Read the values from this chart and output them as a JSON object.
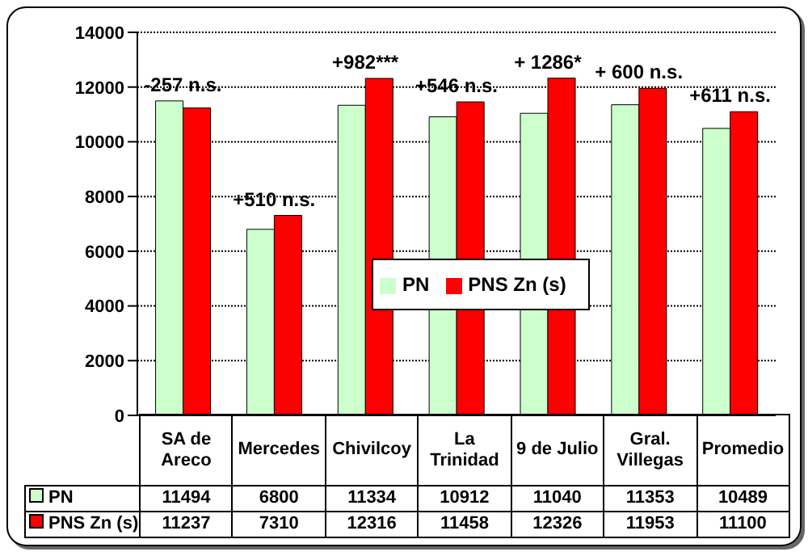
{
  "chart_data": {
    "type": "bar",
    "categories": [
      "SA de Areco",
      "Mercedes",
      "Chivilcoy",
      "La Trinidad",
      "9 de Julio",
      "Gral. Villegas",
      "Promedio"
    ],
    "series": [
      {
        "name": "PN",
        "color": "#ccffcc",
        "values": [
          11494,
          6800,
          11334,
          10912,
          11040,
          11353,
          10489
        ]
      },
      {
        "name": "PNS Zn (s)",
        "color": "#ff0000",
        "values": [
          11237,
          7310,
          12316,
          11458,
          12326,
          11953,
          11100
        ]
      }
    ],
    "ylim": [
      0,
      14000
    ],
    "yticks": [
      0,
      2000,
      4000,
      6000,
      8000,
      10000,
      12000,
      14000
    ],
    "grid": "y",
    "legend": "center",
    "data_labels": true,
    "annotations": [
      {
        "text": "-257 n.s.",
        "x": "SA de Areco",
        "y": 11494
      },
      {
        "text": "+510 n.s.",
        "x": "Mercedes",
        "y": 7310
      },
      {
        "text": "+982***",
        "x": "Chivilcoy",
        "y": 12316
      },
      {
        "text": "+546 n.s.",
        "x": "La Trinidad",
        "y": 11458
      },
      {
        "text": "+ 1286*",
        "x": "9 de Julio",
        "y": 12326
      },
      {
        "text": "+ 600 n.s.",
        "x": "Gral. Villegas",
        "y": 11953
      },
      {
        "text": "+611 n.s.",
        "x": "Promedio",
        "y": 11100
      }
    ]
  }
}
